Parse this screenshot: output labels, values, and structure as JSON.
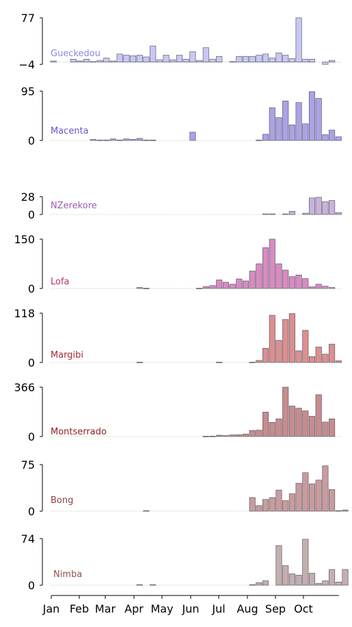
{
  "chart_data": {
    "type": "bar",
    "x_ticks": [
      "Jan",
      "Feb",
      "Mar",
      "Apr",
      "May",
      "Jun",
      "Jul",
      "Aug",
      "Sep",
      "Oct"
    ],
    "panels": [
      {
        "name": "Gueckedou",
        "color": "#c8c8f4",
        "label_color": "#8a88e0",
        "ylim": [
          -4,
          77
        ],
        "ytick_labels": [
          "77",
          "−4"
        ],
        "values": [
          2,
          0,
          0,
          5,
          2,
          5,
          1,
          3,
          7,
          2,
          14,
          12,
          11,
          12,
          9,
          28,
          4,
          12,
          4,
          12,
          5,
          18,
          3,
          25,
          5,
          10,
          0,
          1,
          10,
          10,
          10,
          12,
          14,
          7,
          16,
          12,
          6,
          77,
          5,
          5,
          0,
          -4,
          3,
          0
        ]
      },
      {
        "name": "Macenta",
        "color": "#aaa3e6",
        "label_color": "#6a52c6",
        "ylim": [
          0,
          95
        ],
        "ytick_labels": [
          "95",
          "0"
        ],
        "values": [
          0,
          0,
          0,
          0,
          0,
          0,
          2,
          1,
          1,
          3,
          1,
          3,
          2,
          4,
          1,
          1,
          0,
          0,
          0,
          0,
          0,
          16,
          0,
          0,
          0,
          0,
          0,
          0,
          0,
          0,
          0,
          1,
          12,
          63,
          44,
          76,
          30,
          73,
          32,
          94,
          81,
          11,
          20,
          7
        ]
      },
      {
        "name": "NZerekore",
        "color": "#c9b3dc",
        "label_color": "#9e5ab3",
        "ylim": [
          0,
          28
        ],
        "ytick_labels": [
          "28",
          "0"
        ],
        "values": [
          0,
          0,
          0,
          0,
          0,
          0,
          0,
          0,
          0,
          0,
          0,
          0,
          0,
          0,
          0,
          0,
          0,
          0,
          0,
          0,
          0,
          0,
          0,
          0,
          0,
          0,
          0,
          0,
          0,
          0,
          0,
          0,
          1,
          1,
          0,
          1,
          5,
          0,
          2,
          26,
          27,
          20,
          22,
          3
        ]
      },
      {
        "name": "Lofa",
        "color": "#d98ac2",
        "label_color": "#b2326f",
        "ylim": [
          0,
          150
        ],
        "ytick_labels": [
          "150",
          "0"
        ],
        "values": [
          0,
          0,
          0,
          0,
          0,
          0,
          0,
          0,
          0,
          0,
          0,
          0,
          0,
          3,
          1,
          0,
          0,
          0,
          0,
          0,
          0,
          0,
          1,
          6,
          9,
          26,
          19,
          13,
          29,
          23,
          53,
          75,
          124,
          150,
          75,
          56,
          36,
          41,
          30,
          5,
          13,
          7,
          3,
          0
        ]
      },
      {
        "name": "Margibi",
        "color": "#dc8f8f",
        "label_color": "#a82a32",
        "ylim": [
          0,
          118
        ],
        "ytick_labels": [
          "118",
          "0"
        ],
        "values": [
          0,
          0,
          0,
          0,
          0,
          0,
          0,
          0,
          0,
          0,
          0,
          0,
          0,
          1,
          0,
          0,
          0,
          0,
          0,
          0,
          0,
          0,
          0,
          0,
          0,
          1,
          0,
          0,
          0,
          0,
          1,
          5,
          34,
          113,
          53,
          103,
          117,
          28,
          77,
          14,
          37,
          20,
          44,
          4
        ]
      },
      {
        "name": "Montserrado",
        "color": "#c78c8c",
        "label_color": "#8f1f24",
        "ylim": [
          0,
          366
        ],
        "ytick_labels": [
          "366",
          "0"
        ],
        "values": [
          0,
          0,
          0,
          0,
          0,
          0,
          0,
          0,
          0,
          0,
          0,
          0,
          0,
          0,
          0,
          0,
          0,
          0,
          0,
          0,
          0,
          0,
          0,
          2,
          3,
          10,
          7,
          12,
          13,
          18,
          45,
          47,
          181,
          105,
          131,
          366,
          226,
          210,
          190,
          150,
          310,
          107,
          131,
          0
        ]
      },
      {
        "name": "Bong",
        "color": "#c99c9c",
        "label_color": "#8f3f47",
        "ylim": [
          0,
          75
        ],
        "ytick_labels": [
          "75",
          "0"
        ],
        "values": [
          0,
          0,
          0,
          0,
          0,
          0,
          0,
          0,
          0,
          0,
          0,
          0,
          0,
          0,
          1,
          0,
          0,
          0,
          0,
          0,
          0,
          0,
          0,
          0,
          0,
          0,
          0,
          0,
          0,
          0,
          22,
          9,
          19,
          22,
          34,
          17,
          28,
          45,
          62,
          44,
          50,
          73,
          35,
          1,
          2
        ]
      },
      {
        "name": "Nimba",
        "color": "#c4afaf",
        "label_color": "#8f4f54",
        "ylim": [
          0,
          74
        ],
        "ytick_labels": [
          "74",
          "0"
        ],
        "values": [
          0,
          0,
          0,
          0,
          0,
          0,
          0,
          0,
          0,
          0,
          0,
          0,
          0,
          1,
          0,
          1,
          0,
          0,
          0,
          0,
          0,
          0,
          0,
          0,
          0,
          0,
          0,
          0,
          0,
          0,
          1,
          4,
          7,
          0,
          63,
          31,
          18,
          16,
          73,
          19,
          3,
          7,
          25,
          5,
          25
        ]
      }
    ]
  }
}
